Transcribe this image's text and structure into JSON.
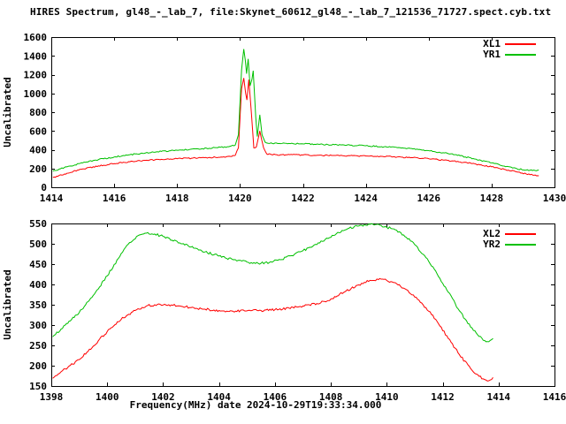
{
  "title": "HIRES Spectrum, gl48_-_lab_7, file:Skynet_60612_gl48_-_lab_7_121536_71727.spect.cyb.txt",
  "xlabel": "Frequency(MHz) date 2024-10-29T19:33:34.000",
  "colors": {
    "xl": "#ff0000",
    "yr": "#00c000",
    "axis": "#000000",
    "background": "#ffffff"
  },
  "chart_data": [
    {
      "type": "line",
      "panel": "top",
      "ylabel": "Uncalibrated",
      "xlim": [
        1414,
        1430
      ],
      "ylim": [
        0,
        1600
      ],
      "x_ticks": [
        1414,
        1416,
        1418,
        1420,
        1422,
        1424,
        1426,
        1428,
        1430
      ],
      "y_ticks": [
        0,
        200,
        400,
        600,
        800,
        1000,
        1200,
        1400,
        1600
      ],
      "grid": false,
      "legend_position": "top-right",
      "series": [
        {
          "name": "XL1",
          "color": "#ff0000",
          "points": [
            [
              1414.05,
              105
            ],
            [
              1414.5,
              150
            ],
            [
              1415,
              195
            ],
            [
              1415.5,
              228
            ],
            [
              1416,
              252
            ],
            [
              1416.5,
              272
            ],
            [
              1417,
              287
            ],
            [
              1417.5,
              297
            ],
            [
              1418,
              304
            ],
            [
              1418.5,
              310
            ],
            [
              1419,
              317
            ],
            [
              1419.4,
              322
            ],
            [
              1419.7,
              328
            ],
            [
              1419.85,
              340
            ],
            [
              1419.95,
              420
            ],
            [
              1420.05,
              1050
            ],
            [
              1420.12,
              1164
            ],
            [
              1420.18,
              1000
            ],
            [
              1420.22,
              930
            ],
            [
              1420.28,
              1148
            ],
            [
              1420.36,
              800
            ],
            [
              1420.44,
              420
            ],
            [
              1420.52,
              430
            ],
            [
              1420.58,
              520
            ],
            [
              1420.63,
              600
            ],
            [
              1420.68,
              520
            ],
            [
              1420.75,
              420
            ],
            [
              1420.85,
              355
            ],
            [
              1421,
              348
            ],
            [
              1421.5,
              346
            ],
            [
              1422,
              344
            ],
            [
              1422.5,
              341
            ],
            [
              1423,
              339
            ],
            [
              1423.5,
              336
            ],
            [
              1424,
              333
            ],
            [
              1424.5,
              329
            ],
            [
              1425,
              323
            ],
            [
              1425.5,
              315
            ],
            [
              1426,
              304
            ],
            [
              1426.5,
              289
            ],
            [
              1427,
              270
            ],
            [
              1427.5,
              247
            ],
            [
              1428,
              218
            ],
            [
              1428.4,
              192
            ],
            [
              1428.8,
              163
            ],
            [
              1429.1,
              142
            ],
            [
              1429.35,
              128
            ],
            [
              1429.5,
              122
            ]
          ]
        },
        {
          "name": "YR1",
          "color": "#00c000",
          "points": [
            [
              1414.05,
              172
            ],
            [
              1414.5,
              218
            ],
            [
              1415,
              260
            ],
            [
              1415.5,
              295
            ],
            [
              1416,
              323
            ],
            [
              1416.5,
              347
            ],
            [
              1417,
              366
            ],
            [
              1417.5,
              382
            ],
            [
              1418,
              394
            ],
            [
              1418.4,
              403
            ],
            [
              1418.8,
              412
            ],
            [
              1419.2,
              422
            ],
            [
              1419.6,
              432
            ],
            [
              1419.85,
              450
            ],
            [
              1419.95,
              560
            ],
            [
              1420.05,
              1250
            ],
            [
              1420.12,
              1472
            ],
            [
              1420.17,
              1350
            ],
            [
              1420.21,
              1210
            ],
            [
              1420.26,
              1368
            ],
            [
              1420.32,
              1080
            ],
            [
              1420.38,
              1150
            ],
            [
              1420.42,
              1242
            ],
            [
              1420.5,
              750
            ],
            [
              1420.55,
              540
            ],
            [
              1420.63,
              772
            ],
            [
              1420.7,
              560
            ],
            [
              1420.8,
              480
            ],
            [
              1420.9,
              468
            ],
            [
              1421.2,
              466
            ],
            [
              1421.6,
              465
            ],
            [
              1422,
              462
            ],
            [
              1422.5,
              458
            ],
            [
              1423,
              453
            ],
            [
              1423.5,
              448
            ],
            [
              1424,
              442
            ],
            [
              1424.5,
              433
            ],
            [
              1425,
              422
            ],
            [
              1425.5,
              408
            ],
            [
              1426,
              390
            ],
            [
              1426.5,
              366
            ],
            [
              1427,
              336
            ],
            [
              1427.5,
              300
            ],
            [
              1428,
              260
            ],
            [
              1428.4,
              226
            ],
            [
              1428.8,
              198
            ],
            [
              1429.1,
              184
            ],
            [
              1429.3,
              178
            ],
            [
              1429.5,
              184
            ]
          ]
        }
      ]
    },
    {
      "type": "line",
      "panel": "bottom",
      "ylabel": "Uncalibrated",
      "xlim": [
        1398,
        1416
      ],
      "ylim": [
        150,
        550
      ],
      "x_ticks": [
        1398,
        1400,
        1402,
        1404,
        1406,
        1408,
        1410,
        1412,
        1414,
        1416
      ],
      "y_ticks": [
        150,
        200,
        250,
        300,
        350,
        400,
        450,
        500,
        550
      ],
      "grid": false,
      "legend_position": "top-right",
      "series": [
        {
          "name": "XL2",
          "color": "#ff0000",
          "points": [
            [
              1398.05,
              169
            ],
            [
              1398.5,
              192
            ],
            [
              1399,
              215
            ],
            [
              1399.5,
              248
            ],
            [
              1400,
              284
            ],
            [
              1400.5,
              314
            ],
            [
              1401,
              336
            ],
            [
              1401.4,
              347
            ],
            [
              1401.8,
              351
            ],
            [
              1402.2,
              350
            ],
            [
              1402.6,
              347
            ],
            [
              1403,
              343
            ],
            [
              1403.5,
              339
            ],
            [
              1404,
              336
            ],
            [
              1404.5,
              334
            ],
            [
              1405,
              335
            ],
            [
              1405.5,
              336
            ],
            [
              1406,
              338
            ],
            [
              1406.5,
              342
            ],
            [
              1407,
              347
            ],
            [
              1407.5,
              353
            ],
            [
              1408,
              364
            ],
            [
              1408.5,
              382
            ],
            [
              1409,
              399
            ],
            [
              1409.4,
              410
            ],
            [
              1409.8,
              413
            ],
            [
              1410.2,
              406
            ],
            [
              1410.6,
              391
            ],
            [
              1411,
              369
            ],
            [
              1411.4,
              343
            ],
            [
              1411.8,
              309
            ],
            [
              1412.2,
              267
            ],
            [
              1412.6,
              227
            ],
            [
              1413,
              193
            ],
            [
              1413.3,
              174
            ],
            [
              1413.5,
              166
            ],
            [
              1413.65,
              163
            ],
            [
              1413.8,
              171
            ]
          ]
        },
        {
          "name": "YR2",
          "color": "#00c000",
          "points": [
            [
              1398.05,
              271
            ],
            [
              1398.5,
              300
            ],
            [
              1399,
              331
            ],
            [
              1399.5,
              373
            ],
            [
              1400,
              421
            ],
            [
              1400.4,
              464
            ],
            [
              1400.8,
              503
            ],
            [
              1401.1,
              520
            ],
            [
              1401.4,
              526
            ],
            [
              1401.7,
              524
            ],
            [
              1402,
              518
            ],
            [
              1402.5,
              506
            ],
            [
              1403,
              492
            ],
            [
              1403.5,
              480
            ],
            [
              1404,
              470
            ],
            [
              1404.5,
              461
            ],
            [
              1405,
              455
            ],
            [
              1405.4,
              452
            ],
            [
              1405.8,
              454
            ],
            [
              1406.2,
              461
            ],
            [
              1406.6,
              471
            ],
            [
              1407,
              483
            ],
            [
              1407.4,
              497
            ],
            [
              1407.8,
              511
            ],
            [
              1408.2,
              525
            ],
            [
              1408.6,
              537
            ],
            [
              1409,
              544
            ],
            [
              1409.4,
              548
            ],
            [
              1409.8,
              545
            ],
            [
              1410.2,
              537
            ],
            [
              1410.6,
              522
            ],
            [
              1411,
              498
            ],
            [
              1411.4,
              466
            ],
            [
              1411.8,
              426
            ],
            [
              1412.2,
              381
            ],
            [
              1412.6,
              335
            ],
            [
              1413,
              295
            ],
            [
              1413.3,
              272
            ],
            [
              1413.5,
              262
            ],
            [
              1413.65,
              259
            ],
            [
              1413.8,
              267
            ]
          ]
        }
      ]
    }
  ]
}
